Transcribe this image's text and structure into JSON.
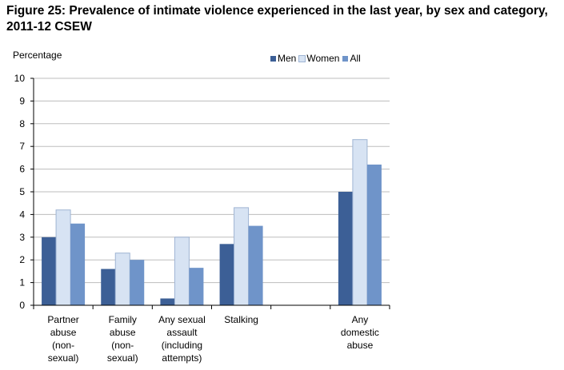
{
  "figure": {
    "title_line1": "Figure 25: Prevalence of intimate violence experienced in the last year, by sex and category,",
    "title_line2": "2011-12 CSEW"
  },
  "chart_data": {
    "type": "bar",
    "title": "Figure 25: Prevalence of intimate violence experienced in the last year, by sex and category, 2011-12 CSEW",
    "ylabel": "Percentage",
    "xlabel": "",
    "ylim": [
      0,
      10
    ],
    "yticks": [
      0,
      1,
      2,
      3,
      4,
      5,
      6,
      7,
      8,
      9,
      10
    ],
    "grid": true,
    "legend_position": "top-right",
    "categories": [
      [
        "Partner",
        "abuse",
        "(non-",
        "sexual)"
      ],
      [
        "Family",
        "abuse",
        "(non-",
        "sexual)"
      ],
      [
        "Any sexual",
        "assault",
        "(including",
        "attempts)"
      ],
      [
        "Stalking"
      ],
      [],
      [
        "Any",
        "domestic",
        "abuse"
      ]
    ],
    "series": [
      {
        "name": "Men",
        "color": "#3c5f96",
        "values": [
          3.0,
          1.6,
          0.3,
          2.7,
          null,
          5.0
        ]
      },
      {
        "name": "Women",
        "color": "#d7e3f3",
        "values": [
          4.2,
          2.3,
          3.0,
          4.3,
          null,
          7.3
        ]
      },
      {
        "name": "All",
        "color": "#6f94c9",
        "values": [
          3.6,
          2.0,
          1.65,
          3.5,
          null,
          6.2
        ]
      }
    ]
  }
}
